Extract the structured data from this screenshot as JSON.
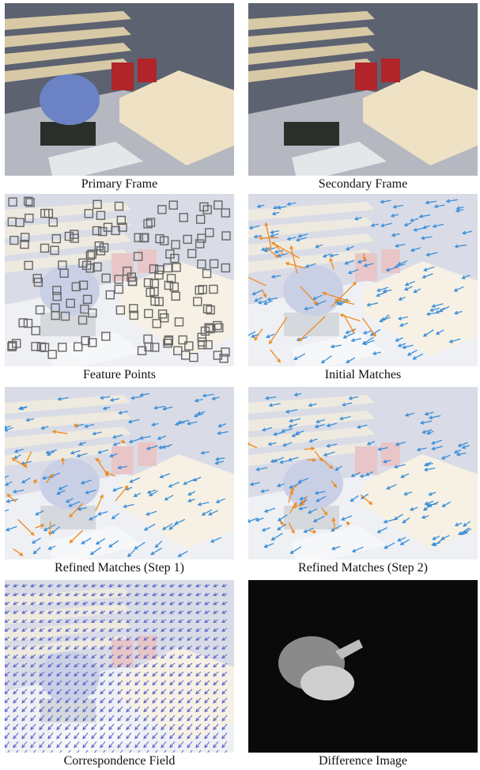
{
  "panels": [
    {
      "caption": "Primary Frame"
    },
    {
      "caption": "Secondary Frame"
    },
    {
      "caption": "Feature Points"
    },
    {
      "caption": "Initial Matches"
    },
    {
      "caption": "Refined Matches (Step 1)"
    },
    {
      "caption": "Refined Matches (Step 2)"
    },
    {
      "caption": "Correspondence Field"
    },
    {
      "caption": "Difference Image"
    }
  ]
}
